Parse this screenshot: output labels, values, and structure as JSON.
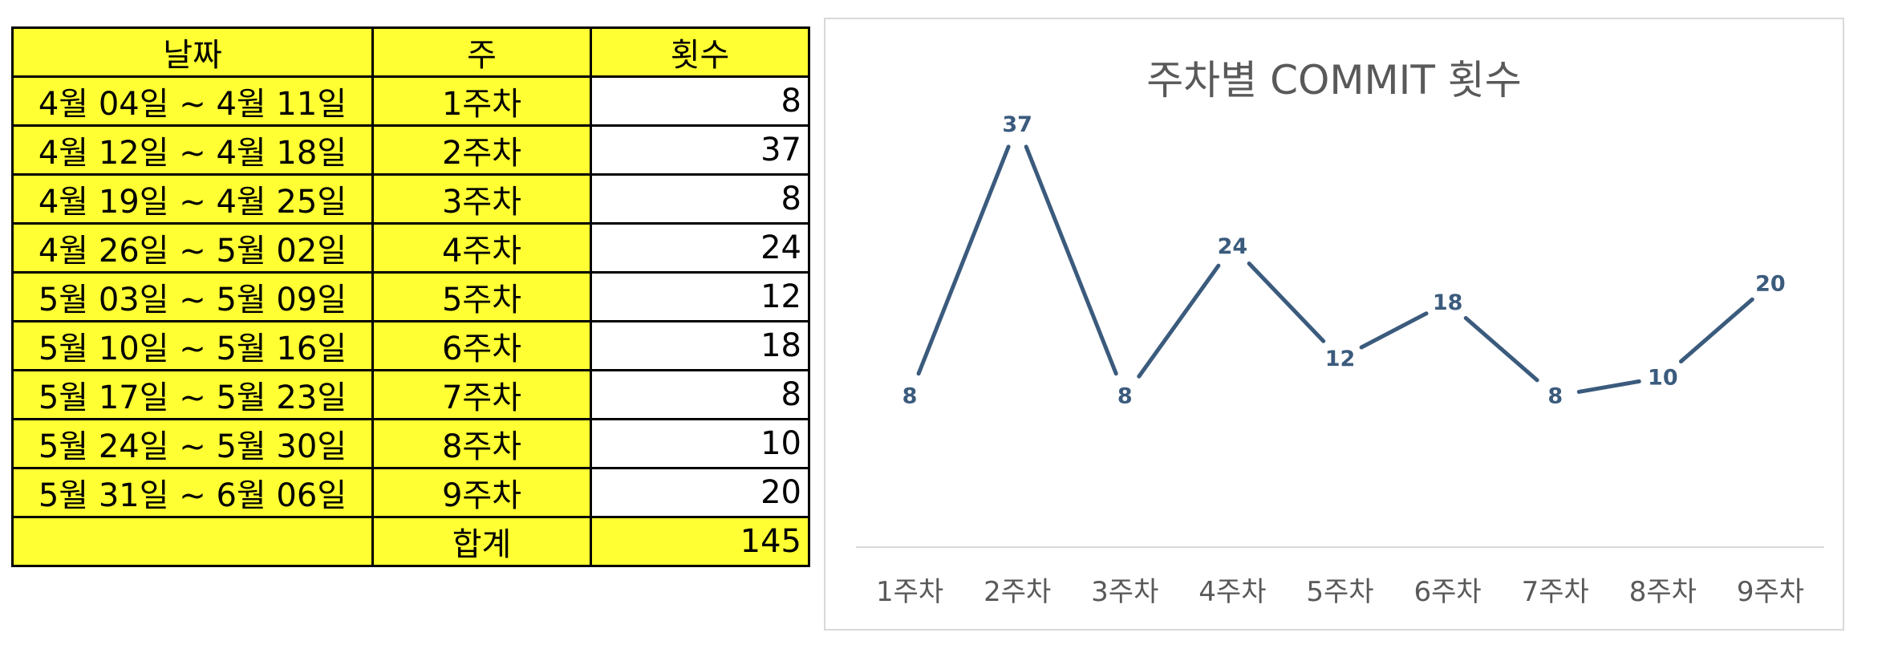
{
  "table": {
    "headers": [
      "날짜",
      "주",
      "횟수"
    ],
    "rows": [
      {
        "date": "4월 04일 ~ 4월 11일",
        "week": "1주차",
        "count": "8"
      },
      {
        "date": "4월 12일 ~ 4월 18일",
        "week": "2주차",
        "count": "37"
      },
      {
        "date": "4월 19일 ~ 4월 25일",
        "week": "3주차",
        "count": "8"
      },
      {
        "date": "4월 26일 ~ 5월 02일",
        "week": "4주차",
        "count": "24"
      },
      {
        "date": "5월 03일 ~ 5월 09일",
        "week": "5주차",
        "count": "12"
      },
      {
        "date": "5월 10일 ~ 5월 16일",
        "week": "6주차",
        "count": "18"
      },
      {
        "date": "5월 17일 ~ 5월 23일",
        "week": "7주차",
        "count": "8"
      },
      {
        "date": "5월 24일 ~ 5월 30일",
        "week": "8주차",
        "count": "10"
      },
      {
        "date": "5월 31일 ~ 6월 06일",
        "week": "9주차",
        "count": "20"
      }
    ],
    "total": {
      "date": "",
      "label": "합계",
      "count": "145"
    },
    "colors": {
      "highlight": "#ffff33",
      "border": "#000000"
    }
  },
  "chart_data": {
    "type": "line",
    "title": "주차별 COMMIT 횟수",
    "xlabel": "",
    "ylabel": "",
    "categories": [
      "1주차",
      "2주차",
      "3주차",
      "4주차",
      "5주차",
      "6주차",
      "7주차",
      "8주차",
      "9주차"
    ],
    "series": [
      {
        "values": [
          8,
          37,
          8,
          24,
          12,
          18,
          8,
          10,
          20
        ]
      }
    ],
    "data_labels": true,
    "grid": false,
    "legend": "none",
    "ylim": [
      0,
      40
    ],
    "colors": {
      "line": "#3b5b7d",
      "axis": "#d9d9d9",
      "text": "#595959"
    }
  }
}
